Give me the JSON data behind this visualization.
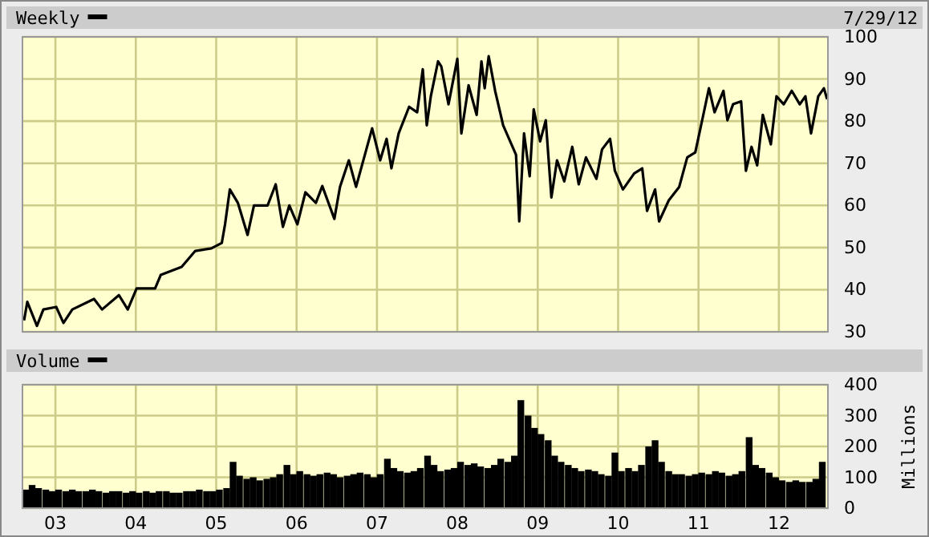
{
  "chart_data": [
    {
      "type": "line",
      "legend": "top left",
      "annotations": [
        "7/29/12"
      ],
      "grid": true,
      "tick_labels": "y",
      "xlim": [
        2002.59,
        2012.61
      ],
      "ylim": [
        30,
        100
      ],
      "yticks": [
        30,
        40,
        50,
        60,
        70,
        80,
        90,
        100
      ],
      "xticks": [
        {
          "value": 2003,
          "label": null
        },
        {
          "value": 2004,
          "label": null
        },
        {
          "value": 2005,
          "label": null
        },
        {
          "value": 2006,
          "label": null
        },
        {
          "value": 2007,
          "label": null
        },
        {
          "value": 2008,
          "label": null
        },
        {
          "value": 2009,
          "label": null
        },
        {
          "value": 2010,
          "label": null
        },
        {
          "value": 2011,
          "label": null
        },
        {
          "value": 2012,
          "label": null
        }
      ],
      "series": [
        {
          "name": "Weekly",
          "color": "#000000",
          "x": [
            2002.61,
            2002.65,
            2002.77,
            2002.85,
            2003.01,
            2003.1,
            2003.21,
            2003.48,
            2003.58,
            2003.79,
            2003.9,
            2004.01,
            2004.24,
            2004.31,
            2004.57,
            2004.74,
            2004.94,
            2005.07,
            2005.11,
            2005.17,
            2005.27,
            2005.39,
            2005.47,
            2005.64,
            2005.74,
            2005.83,
            2005.91,
            2006.01,
            2006.11,
            2006.24,
            2006.32,
            2006.47,
            2006.54,
            2006.65,
            2006.74,
            2006.94,
            2007.04,
            2007.12,
            2007.18,
            2007.27,
            2007.4,
            2007.5,
            2007.57,
            2007.62,
            2007.67,
            2007.76,
            2007.8,
            2007.89,
            2008.0,
            2008.05,
            2008.14,
            2008.24,
            2008.3,
            2008.34,
            2008.39,
            2008.47,
            2008.57,
            2008.73,
            2008.77,
            2008.83,
            2008.9,
            2008.95,
            2009.03,
            2009.1,
            2009.17,
            2009.24,
            2009.33,
            2009.43,
            2009.51,
            2009.6,
            2009.73,
            2009.8,
            2009.9,
            2009.96,
            2010.06,
            2010.2,
            2010.3,
            2010.36,
            2010.46,
            2010.51,
            2010.63,
            2010.76,
            2010.86,
            2010.96,
            2011.06,
            2011.13,
            2011.2,
            2011.31,
            2011.36,
            2011.43,
            2011.53,
            2011.59,
            2011.66,
            2011.73,
            2011.8,
            2011.9,
            2011.97,
            2012.06,
            2012.16,
            2012.26,
            2012.33,
            2012.4,
            2012.49,
            2012.56,
            2012.6
          ],
          "values": [
            32.7,
            37.1,
            31.4,
            35.3,
            35.9,
            32.1,
            35.3,
            37.8,
            35.3,
            38.7,
            35.3,
            40.3,
            40.3,
            43.5,
            45.4,
            49.2,
            49.8,
            51.1,
            55.5,
            63.8,
            60.6,
            53.0,
            60.0,
            60.0,
            65.0,
            54.9,
            60.0,
            55.5,
            63.1,
            60.6,
            64.6,
            56.8,
            64.4,
            70.7,
            64.4,
            78.3,
            70.7,
            75.8,
            68.8,
            77.1,
            83.4,
            82.1,
            92.3,
            79.0,
            85.9,
            94.2,
            93.0,
            84.0,
            94.8,
            77.1,
            88.5,
            81.5,
            94.2,
            87.8,
            95.4,
            87.2,
            79.0,
            72.0,
            56.2,
            77.1,
            66.9,
            82.8,
            75.2,
            80.2,
            61.9,
            70.7,
            65.7,
            73.9,
            65.0,
            71.4,
            66.3,
            73.3,
            75.8,
            68.2,
            63.8,
            67.6,
            68.8,
            58.7,
            63.8,
            56.2,
            61.2,
            64.4,
            71.4,
            72.6,
            81.5,
            87.8,
            82.1,
            87.2,
            80.2,
            84.0,
            84.7,
            68.2,
            73.9,
            69.5,
            81.5,
            74.5,
            85.9,
            84.0,
            87.2,
            84.0,
            85.9,
            77.1,
            85.9,
            87.8,
            85.2
          ]
        }
      ]
    },
    {
      "type": "bar",
      "legend": "top left",
      "grid": true,
      "ylabel": "Millions",
      "xlim": [
        2002.59,
        2012.61
      ],
      "ylim": [
        0,
        400
      ],
      "yticks": [
        0,
        100,
        200,
        300,
        400
      ],
      "xticks": [
        {
          "value": 2003,
          "label": "03"
        },
        {
          "value": 2004,
          "label": "04"
        },
        {
          "value": 2005,
          "label": "05"
        },
        {
          "value": 2006,
          "label": "06"
        },
        {
          "value": 2007,
          "label": "07"
        },
        {
          "value": 2008,
          "label": "08"
        },
        {
          "value": 2009,
          "label": "09"
        },
        {
          "value": 2010,
          "label": "10"
        },
        {
          "value": 2011,
          "label": "11"
        },
        {
          "value": 2012,
          "label": "12"
        }
      ],
      "series": [
        {
          "name": "Volume",
          "color": "#000000",
          "x": [
            2002.63,
            2002.71,
            2002.79,
            2002.88,
            2002.96,
            2003.04,
            2003.13,
            2003.21,
            2003.29,
            2003.38,
            2003.46,
            2003.54,
            2003.63,
            2003.71,
            2003.79,
            2003.88,
            2003.96,
            2004.04,
            2004.13,
            2004.21,
            2004.29,
            2004.38,
            2004.46,
            2004.54,
            2004.63,
            2004.71,
            2004.79,
            2004.88,
            2004.96,
            2005.04,
            2005.13,
            2005.21,
            2005.29,
            2005.38,
            2005.46,
            2005.54,
            2005.63,
            2005.71,
            2005.79,
            2005.88,
            2005.96,
            2006.04,
            2006.13,
            2006.21,
            2006.29,
            2006.38,
            2006.46,
            2006.54,
            2006.63,
            2006.71,
            2006.79,
            2006.88,
            2006.96,
            2007.04,
            2007.13,
            2007.21,
            2007.29,
            2007.38,
            2007.46,
            2007.54,
            2007.63,
            2007.71,
            2007.79,
            2007.88,
            2007.96,
            2008.04,
            2008.13,
            2008.21,
            2008.29,
            2008.38,
            2008.46,
            2008.54,
            2008.63,
            2008.71,
            2008.79,
            2008.88,
            2008.96,
            2009.04,
            2009.13,
            2009.21,
            2009.29,
            2009.38,
            2009.46,
            2009.54,
            2009.63,
            2009.71,
            2009.79,
            2009.88,
            2009.96,
            2010.04,
            2010.13,
            2010.21,
            2010.29,
            2010.38,
            2010.46,
            2010.54,
            2010.63,
            2010.71,
            2010.79,
            2010.88,
            2010.96,
            2011.04,
            2011.13,
            2011.21,
            2011.29,
            2011.38,
            2011.46,
            2011.54,
            2011.63,
            2011.71,
            2011.79,
            2011.88,
            2011.96,
            2012.04,
            2012.13,
            2012.21,
            2012.29,
            2012.38,
            2012.46,
            2012.54
          ],
          "values": [
            60,
            75,
            65,
            60,
            55,
            60,
            55,
            60,
            55,
            55,
            60,
            55,
            50,
            55,
            55,
            50,
            55,
            50,
            55,
            50,
            55,
            55,
            50,
            50,
            55,
            55,
            60,
            55,
            55,
            60,
            65,
            150,
            105,
            95,
            100,
            90,
            95,
            100,
            110,
            140,
            110,
            120,
            110,
            105,
            110,
            115,
            110,
            100,
            105,
            110,
            115,
            110,
            100,
            110,
            160,
            130,
            120,
            115,
            120,
            130,
            170,
            140,
            120,
            125,
            130,
            150,
            140,
            145,
            135,
            130,
            140,
            160,
            150,
            170,
            350,
            300,
            260,
            240,
            220,
            170,
            150,
            140,
            130,
            120,
            125,
            120,
            110,
            105,
            180,
            120,
            130,
            120,
            140,
            200,
            220,
            150,
            120,
            110,
            110,
            105,
            110,
            115,
            110,
            120,
            115,
            105,
            110,
            120,
            230,
            140,
            130,
            115,
            100,
            90,
            85,
            90,
            85,
            85,
            95,
            150
          ]
        }
      ]
    }
  ]
}
